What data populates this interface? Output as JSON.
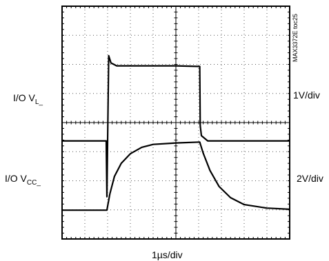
{
  "figure_id": "MAX3372E toc25",
  "labels": {
    "ch1_main": "I/O V",
    "ch1_sub": "L_",
    "ch1_scale": "1V/div",
    "ch2_main": "I/O V",
    "ch2_sub": "CC_",
    "ch2_scale": "2V/div",
    "time_scale": "1µs/div"
  },
  "chart_data": {
    "type": "line",
    "title": "",
    "xlabel": "1µs/div",
    "grid": true,
    "grid_divisions": {
      "x": 10,
      "y": 8
    },
    "xlim_divisions": [
      0,
      10
    ],
    "ylim_divisions": [
      0,
      8
    ],
    "series": [
      {
        "name": "I/O V_L_",
        "scale": "1V/div",
        "points": [
          [
            0.0,
            3.37
          ],
          [
            1.94,
            3.37
          ],
          [
            1.97,
            1.45
          ],
          [
            2.05,
            6.3
          ],
          [
            2.15,
            6.05
          ],
          [
            2.4,
            5.95
          ],
          [
            5.0,
            5.95
          ],
          [
            6.05,
            5.93
          ],
          [
            6.07,
            3.9
          ],
          [
            6.12,
            3.55
          ],
          [
            6.4,
            3.37
          ],
          [
            10.0,
            3.37
          ]
        ]
      },
      {
        "name": "I/O V_CC_",
        "scale": "2V/div",
        "points": [
          [
            0.0,
            0.99
          ],
          [
            1.97,
            0.99
          ],
          [
            2.1,
            1.55
          ],
          [
            2.3,
            2.15
          ],
          [
            2.6,
            2.6
          ],
          [
            3.0,
            2.93
          ],
          [
            3.5,
            3.15
          ],
          [
            4.0,
            3.25
          ],
          [
            5.0,
            3.3
          ],
          [
            6.05,
            3.33
          ],
          [
            6.2,
            2.95
          ],
          [
            6.5,
            2.35
          ],
          [
            6.9,
            1.8
          ],
          [
            7.4,
            1.42
          ],
          [
            8.0,
            1.18
          ],
          [
            9.0,
            1.06
          ],
          [
            10.0,
            1.02
          ]
        ]
      }
    ]
  }
}
